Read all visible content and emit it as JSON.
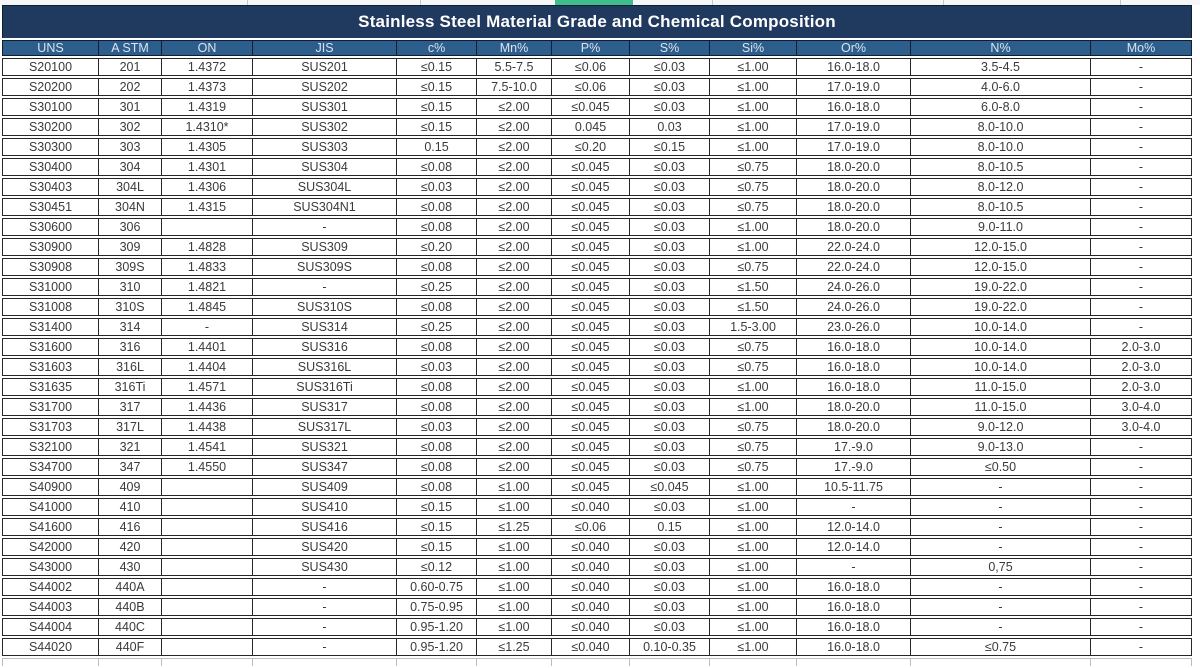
{
  "title": "Stainless Steel Material Grade and Chemical Composition",
  "colors": {
    "title_bg": "#20395f",
    "header_bg": "#2d5e8b",
    "header_text": "#d9e4f0",
    "body_text": "#3a3a3a",
    "border": "#262626",
    "accent_green": "#3fbd8d"
  },
  "table": {
    "columns": [
      "UNS",
      "A STM",
      "ON",
      "JIS",
      "c%",
      "Mn%",
      "P%",
      "S%",
      "Si%",
      "Or%",
      "N%",
      "Mo%"
    ],
    "rows": [
      [
        "S20100",
        "201",
        "1.4372",
        "SUS201",
        "≤0.15",
        "5.5-7.5",
        "≤0.06",
        "≤0.03",
        "≤1.00",
        "16.0-18.0",
        "3.5-4.5",
        "-"
      ],
      [
        "S20200",
        "202",
        "1.4373",
        "SUS202",
        "≤0.15",
        "7.5-10.0",
        "≤0.06",
        "≤0.03",
        "≤1.00",
        "17.0-19.0",
        "4.0-6.0",
        "-"
      ],
      [
        "S30100",
        "301",
        "1.4319",
        "SUS301",
        "≤0.15",
        "≤2.00",
        "≤0.045",
        "≤0.03",
        "≤1.00",
        "16.0-18.0",
        "6.0-8.0",
        "-"
      ],
      [
        "S30200",
        "302",
        "1.4310*",
        "SUS302",
        "≤0.15",
        "≤2.00",
        "0.045",
        "0.03",
        "≤1.00",
        "17.0-19.0",
        "8.0-10.0",
        "-"
      ],
      [
        "S30300",
        "303",
        "1.4305",
        "SUS303",
        "0.15",
        "≤2.00",
        "≤0.20",
        "≤0.15",
        "≤1.00",
        "17.0-19.0",
        "8.0-10.0",
        "-"
      ],
      [
        "S30400",
        "304",
        "1.4301",
        "SUS304",
        "≤0.08",
        "≤2.00",
        "≤0.045",
        "≤0.03",
        "≤0.75",
        "18.0-20.0",
        "8.0-10.5",
        "-"
      ],
      [
        "S30403",
        "304L",
        "1.4306",
        "SUS304L",
        "≤0.03",
        "≤2.00",
        "≤0.045",
        "≤0.03",
        "≤0.75",
        "18.0-20.0",
        "8.0-12.0",
        "-"
      ],
      [
        "S30451",
        "304N",
        "1.4315",
        "SUS304N1",
        "≤0.08",
        "≤2.00",
        "≤0.045",
        "≤0.03",
        "≤0.75",
        "18.0-20.0",
        "8.0-10.5",
        "-"
      ],
      [
        "S30600",
        "306",
        "",
        "-",
        "≤0.08",
        "≤2.00",
        "≤0.045",
        "≤0.03",
        "≤1.00",
        "18.0-20.0",
        "9.0-11.0",
        "-"
      ],
      [
        "S30900",
        "309",
        "1.4828",
        "SUS309",
        "≤0.20",
        "≤2.00",
        "≤0.045",
        "≤0.03",
        "≤1.00",
        "22.0-24.0",
        "12.0-15.0",
        "-"
      ],
      [
        "S30908",
        "309S",
        "1.4833",
        "SUS309S",
        "≤0.08",
        "≤2.00",
        "≤0.045",
        "≤0.03",
        "≤0.75",
        "22.0-24.0",
        "12.0-15.0",
        "-"
      ],
      [
        "S31000",
        "310",
        "1.4821",
        "-",
        "≤0.25",
        "≤2.00",
        "≤0.045",
        "≤0.03",
        "≤1.50",
        "24.0-26.0",
        "19.0-22.0",
        "-"
      ],
      [
        "S31008",
        "310S",
        "1.4845",
        "SUS310S",
        "≤0.08",
        "≤2.00",
        "≤0.045",
        "≤0.03",
        "≤1.50",
        "24.0-26.0",
        "19.0-22.0",
        "-"
      ],
      [
        "S31400",
        "314",
        "-",
        "SUS314",
        "≤0.25",
        "≤2.00",
        "≤0.045",
        "≤0.03",
        "1.5-3.00",
        "23.0-26.0",
        "10.0-14.0",
        "-"
      ],
      [
        "S31600",
        "316",
        "1.4401",
        "SUS316",
        "≤0.08",
        "≤2.00",
        "≤0.045",
        "≤0.03",
        "≤0.75",
        "16.0-18.0",
        "10.0-14.0",
        "2.0-3.0"
      ],
      [
        "S31603",
        "316L",
        "1.4404",
        "SUS316L",
        "≤0.03",
        "≤2.00",
        "≤0.045",
        "≤0.03",
        "≤0.75",
        "16.0-18.0",
        "10.0-14.0",
        "2.0-3.0"
      ],
      [
        "S31635",
        "316Ti",
        "1.4571",
        "SUS316Ti",
        "≤0.08",
        "≤2.00",
        "≤0.045",
        "≤0.03",
        "≤1.00",
        "16.0-18.0",
        "11.0-15.0",
        "2.0-3.0"
      ],
      [
        "S31700",
        "317",
        "1.4436",
        "SUS317",
        "≤0.08",
        "≤2.00",
        "≤0.045",
        "≤0.03",
        "≤1.00",
        "18.0-20.0",
        "11.0-15.0",
        "3.0-4.0"
      ],
      [
        "S31703",
        "317L",
        "1.4438",
        "SUS317L",
        "≤0.03",
        "≤2.00",
        "≤0.045",
        "≤0.03",
        "≤0.75",
        "18.0-20.0",
        "9.0-12.0",
        "3.0-4.0"
      ],
      [
        "S32100",
        "321",
        "1.4541",
        "SUS321",
        "≤0.08",
        "≤2.00",
        "≤0.045",
        "≤0.03",
        "≤0.75",
        "17.-9.0",
        "9.0-13.0",
        "-"
      ],
      [
        "S34700",
        "347",
        "1.4550",
        "SUS347",
        "≤0.08",
        "≤2.00",
        "≤0.045",
        "≤0.03",
        "≤0.75",
        "17.-9.0",
        "≤0.50",
        "-"
      ],
      [
        "S40900",
        "409",
        "",
        "SUS409",
        "≤0.08",
        "≤1.00",
        "≤0.045",
        "≤0.045",
        "≤1.00",
        "10.5-11.75",
        "-",
        "-"
      ],
      [
        "S41000",
        "410",
        "",
        "SUS410",
        "≤0.15",
        "≤1.00",
        "≤0.040",
        "≤0.03",
        "≤1.00",
        "-",
        "-",
        "-"
      ],
      [
        "S41600",
        "416",
        "",
        "SUS416",
        "≤0.15",
        "≤1.25",
        "≤0.06",
        "0.15",
        "≤1.00",
        "12.0-14.0",
        "-",
        "-"
      ],
      [
        "S42000",
        "420",
        "",
        "SUS420",
        "≤0.15",
        "≤1.00",
        "≤0.040",
        "≤0.03",
        "≤1.00",
        "12.0-14.0",
        "-",
        "-"
      ],
      [
        "S43000",
        "430",
        "",
        "SUS430",
        "≤0.12",
        "≤1.00",
        "≤0.040",
        "≤0.03",
        "≤1.00",
        "-",
        "0,75",
        "-"
      ],
      [
        "S44002",
        "440A",
        "",
        "-",
        "0.60-0.75",
        "≤1.00",
        "≤0.040",
        "≤0.03",
        "≤1.00",
        "16.0-18.0",
        "-",
        "-"
      ],
      [
        "S44003",
        "440B",
        "",
        "-",
        "0.75-0.95",
        "≤1.00",
        "≤0.040",
        "≤0.03",
        "≤1.00",
        "16.0-18.0",
        "-",
        "-"
      ],
      [
        "S44004",
        "440C",
        "",
        "-",
        "0.95-1.20",
        "≤1.00",
        "≤0.040",
        "≤0.03",
        "≤1.00",
        "16.0-18.0",
        "-",
        "-"
      ],
      [
        "S44020",
        "440F",
        "",
        "-",
        "0.95-1.20",
        "≤1.25",
        "≤0.040",
        "0.10-0.35",
        "≤1.00",
        "16.0-18.0",
        "≤0.75",
        "-"
      ]
    ]
  }
}
